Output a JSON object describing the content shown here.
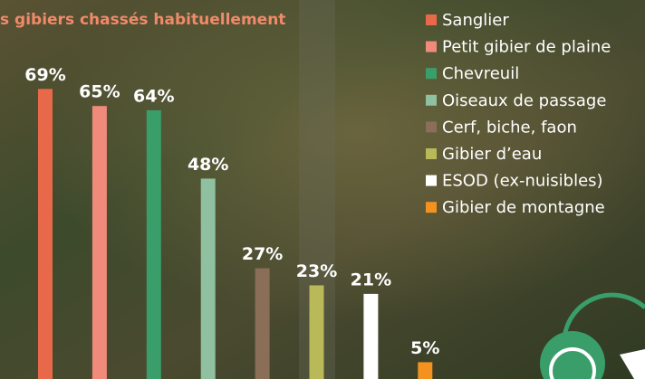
{
  "chart_data": {
    "type": "bar",
    "title": "s gibiers chassés habituellement",
    "categories": [
      "Sanglier",
      "Petit gibier de plaine",
      "Chevreuil",
      "Oiseaux de passage",
      "Cerf, biche, faon",
      "Gibier d’eau",
      "ESOD (ex-nuisibles)",
      "Gibier de montagne"
    ],
    "values": [
      69,
      65,
      64,
      48,
      27,
      23,
      21,
      5
    ],
    "value_labels": [
      "69%",
      "65%",
      "64%",
      "48%",
      "27%",
      "23%",
      "21%",
      "5%"
    ],
    "colors": [
      "#e8694a",
      "#f08a7a",
      "#3a9e6a",
      "#8fc0a0",
      "#8a6e58",
      "#b9b95a",
      "#ffffff",
      "#f3921f"
    ]
  }
}
